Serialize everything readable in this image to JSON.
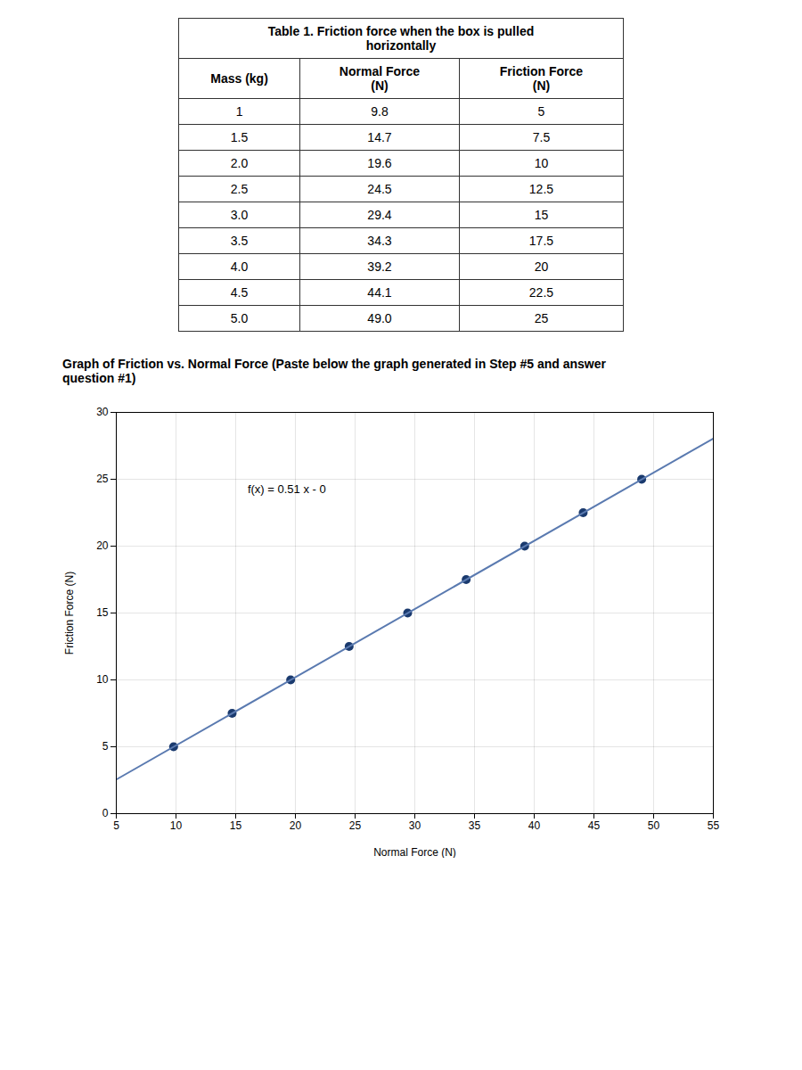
{
  "chart_data": [
    {
      "type": "table",
      "title": "Table 1. Friction force when the box is pulled\nhorizontally",
      "columns": [
        "Mass (kg)",
        "Normal Force\n(N)",
        "Friction Force\n(N)"
      ],
      "rows": [
        [
          "1",
          "9.8",
          "5"
        ],
        [
          "1.5",
          "14.7",
          "7.5"
        ],
        [
          "2.0",
          "19.6",
          "10"
        ],
        [
          "2.5",
          "24.5",
          "12.5"
        ],
        [
          "3.0",
          "29.4",
          "15"
        ],
        [
          "3.5",
          "34.3",
          "17.5"
        ],
        [
          "4.0",
          "39.2",
          "20"
        ],
        [
          "4.5",
          "44.1",
          "22.5"
        ],
        [
          "5.0",
          "49.0",
          "25"
        ]
      ]
    },
    {
      "type": "scatter",
      "title": "Graph of Friction vs. Normal Force (Paste below the graph generated in Step #5 and answer\nquestion #1)",
      "xlabel": "Normal Force (N)",
      "ylabel": "Friction Force (N)",
      "xlim": [
        5,
        55
      ],
      "ylim": [
        0,
        30
      ],
      "xticks": [
        5,
        10,
        15,
        20,
        25,
        30,
        35,
        40,
        45,
        50,
        55
      ],
      "yticks": [
        0,
        5,
        10,
        15,
        20,
        25,
        30
      ],
      "grid": true,
      "annotations": [
        "f(x) = 0.51 x - 0"
      ],
      "series": [
        {
          "type": "scatter",
          "color": "#1a3a6e",
          "x": [
            9.8,
            14.7,
            19.6,
            24.5,
            29.4,
            34.3,
            39.2,
            44.1,
            49.0
          ],
          "values": [
            5,
            7.5,
            10,
            12.5,
            15,
            17.5,
            20,
            22.5,
            25
          ]
        },
        {
          "type": "line",
          "color": "#5a7ab0",
          "x": [
            5,
            55
          ],
          "values": [
            2.55,
            28.05
          ]
        }
      ]
    }
  ]
}
